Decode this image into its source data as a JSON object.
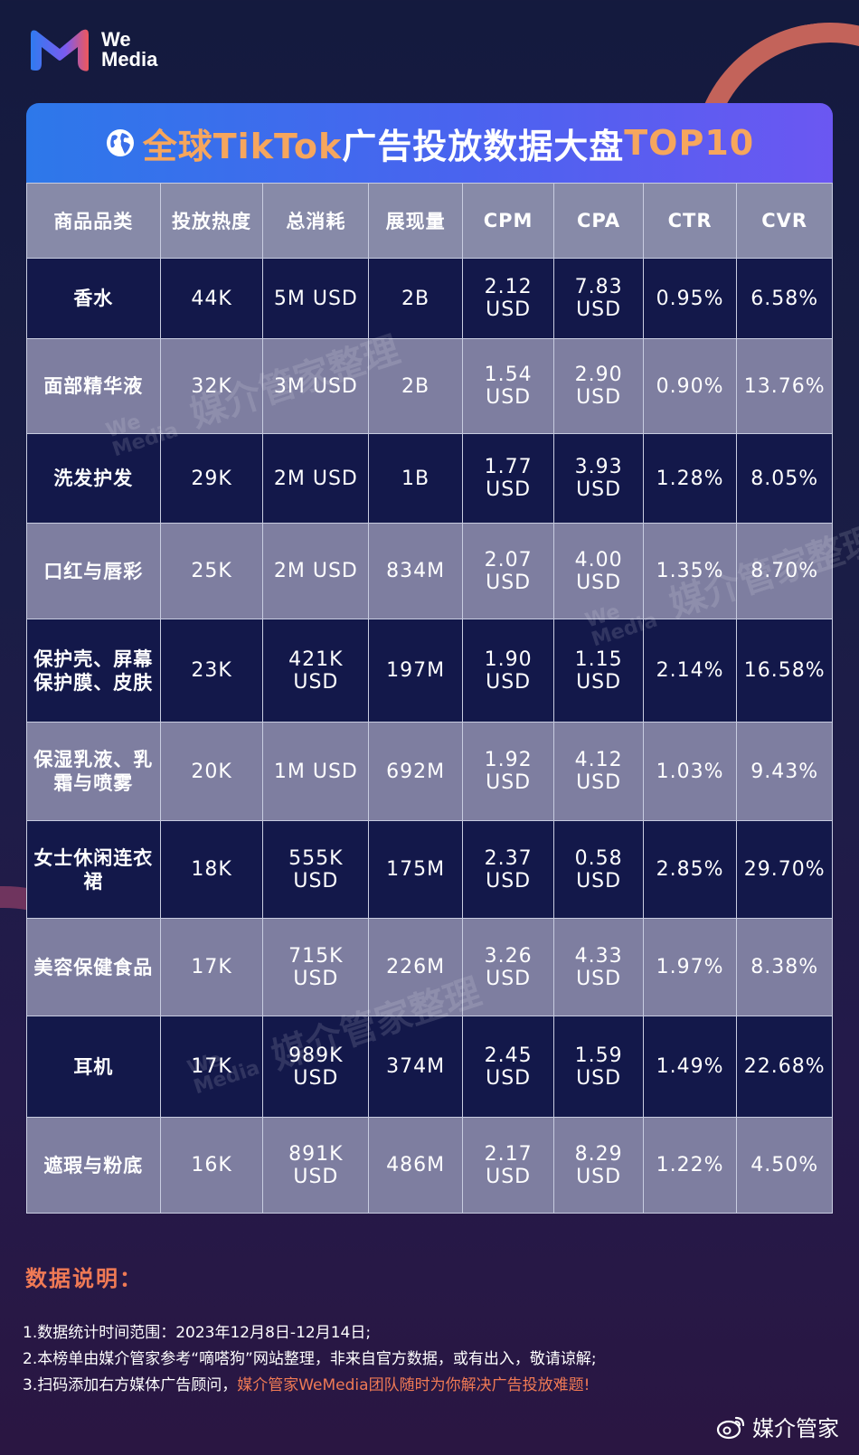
{
  "brand": {
    "line1": "We",
    "line2": "Media"
  },
  "title": {
    "part1": "全球TikTok",
    "part2": "广告投放数据大盘",
    "part3": "TOP10"
  },
  "table": {
    "headers": [
      "商品品类",
      "投放热度",
      "总消耗",
      "展现量",
      "CPM",
      "CPA",
      "CTR",
      "CVR"
    ],
    "rows": [
      [
        "香水",
        "44K",
        "5M USD",
        "2B",
        "2.12 USD",
        "7.83 USD",
        "0.95%",
        "6.58%"
      ],
      [
        "面部精华液",
        "32K",
        "3M USD",
        "2B",
        "1.54 USD",
        "2.90 USD",
        "0.90%",
        "13.76%"
      ],
      [
        "洗发护发",
        "29K",
        "2M USD",
        "1B",
        "1.77 USD",
        "3.93 USD",
        "1.28%",
        "8.05%"
      ],
      [
        "口红与唇彩",
        "25K",
        "2M USD",
        "834M",
        "2.07 USD",
        "4.00 USD",
        "1.35%",
        "8.70%"
      ],
      [
        "保护壳、屏幕保护膜、皮肤",
        "23K",
        "421K USD",
        "197M",
        "1.90 USD",
        "1.15 USD",
        "2.14%",
        "16.58%"
      ],
      [
        "保湿乳液、乳霜与喷雾",
        "20K",
        "1M USD",
        "692M",
        "1.92 USD",
        "4.12 USD",
        "1.03%",
        "9.43%"
      ],
      [
        "女士休闲连衣裙",
        "18K",
        "555K USD",
        "175M",
        "2.37 USD",
        "0.58 USD",
        "2.85%",
        "29.70%"
      ],
      [
        "美容保健食品",
        "17K",
        "715K USD",
        "226M",
        "3.26 USD",
        "4.33 USD",
        "1.97%",
        "8.38%"
      ],
      [
        "耳机",
        "17K",
        "989K USD",
        "374M",
        "2.45 USD",
        "1.59 USD",
        "1.49%",
        "22.68%"
      ],
      [
        "遮瑕与粉底",
        "16K",
        "891K USD",
        "486M",
        "2.17 USD",
        "8.29 USD",
        "1.22%",
        "4.50%"
      ]
    ]
  },
  "watermark": {
    "text": "媒介管家整理",
    "brand1": "We",
    "brand2": "Media"
  },
  "notes": {
    "title": "数据说明：",
    "line1": "1.数据统计时间范围：2023年12月8日-12月14日;",
    "line2": "2.本榜单由媒介管家参考“嘀嗒狗”网站整理，非来自官方数据，或有出入，敬请谅解;",
    "line3_prefix": "3.扫码添加右方媒体广告顾问，",
    "line3_highlight": "媒介管家WeMedia团队随时为你解决广告投放难题!"
  },
  "footer": {
    "brand": "媒介管家"
  },
  "colors": {
    "accent": "#f6a65d",
    "title_bg_start": "#2d78ea",
    "title_bg_end": "#6b57f2",
    "row_dark": "#13184a",
    "row_light": "#7e7ea0",
    "note_highlight": "#f07a55"
  }
}
